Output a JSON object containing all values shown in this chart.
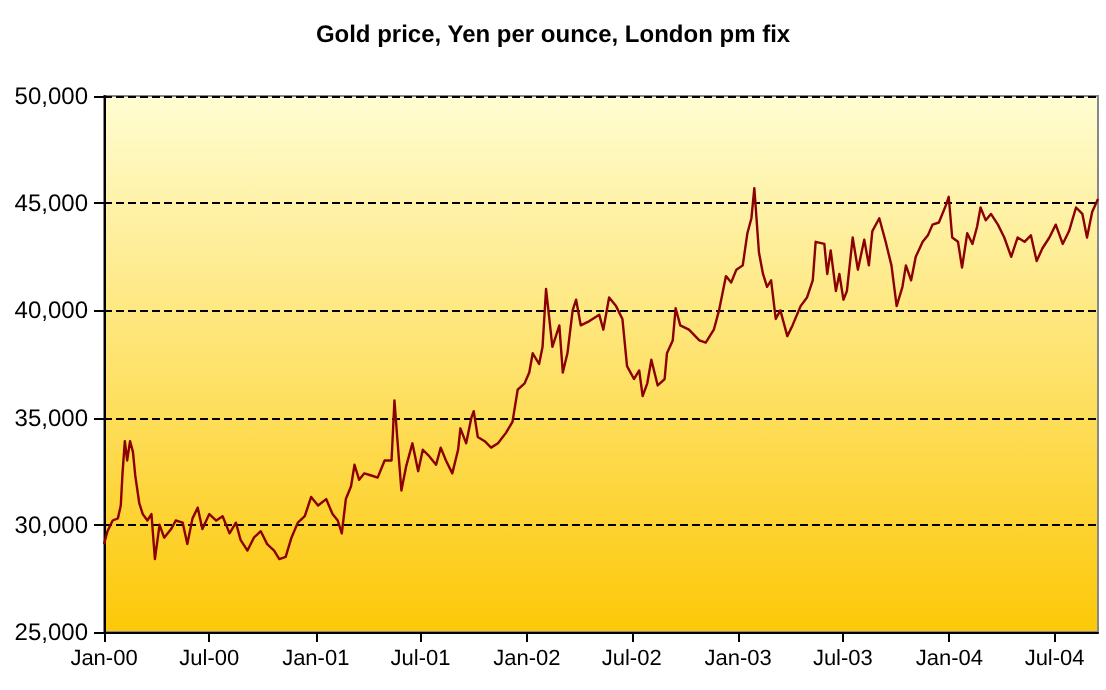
{
  "chart_data": {
    "type": "line",
    "title": "Gold price, Yen per ounce, London pm fix",
    "x": [
      "2000-01-01",
      "2000-01-07",
      "2000-01-16",
      "2000-01-25",
      "2000-01-30",
      "2000-02-02",
      "2000-02-06",
      "2000-02-10",
      "2000-02-15",
      "2000-02-20",
      "2000-02-24",
      "2000-03-02",
      "2000-03-08",
      "2000-03-16",
      "2000-03-23",
      "2000-03-29",
      "2000-04-06",
      "2000-04-14",
      "2000-04-26",
      "2000-05-04",
      "2000-05-16",
      "2000-05-24",
      "2000-06-02",
      "2000-06-11",
      "2000-06-19",
      "2000-07-01",
      "2000-07-13",
      "2000-07-24",
      "2000-08-05",
      "2000-08-16",
      "2000-08-24",
      "2000-09-05",
      "2000-09-16",
      "2000-09-28",
      "2000-10-09",
      "2000-10-21",
      "2000-10-30",
      "2000-11-10",
      "2000-11-20",
      "2000-12-01",
      "2000-12-13",
      "2000-12-24",
      "2001-01-05",
      "2001-01-19",
      "2001-01-30",
      "2001-02-08",
      "2001-02-15",
      "2001-02-22",
      "2001-03-03",
      "2001-03-09",
      "2001-03-17",
      "2001-03-26",
      "2001-04-07",
      "2001-04-18",
      "2001-04-30",
      "2001-05-12",
      "2001-05-17",
      "2001-05-22",
      "2001-05-29",
      "2001-06-06",
      "2001-06-17",
      "2001-06-27",
      "2001-07-05",
      "2001-07-16",
      "2001-07-28",
      "2001-08-05",
      "2001-08-14",
      "2001-08-25",
      "2001-09-04",
      "2001-09-08",
      "2001-09-18",
      "2001-09-27",
      "2001-10-01",
      "2001-10-08",
      "2001-10-20",
      "2001-10-31",
      "2001-11-12",
      "2001-11-26",
      "2001-12-07",
      "2001-12-16",
      "2001-12-28",
      "2002-01-05",
      "2002-01-11",
      "2002-01-22",
      "2002-01-28",
      "2002-02-03",
      "2002-02-14",
      "2002-02-26",
      "2002-03-04",
      "2002-03-12",
      "2002-03-21",
      "2002-03-27",
      "2002-04-04",
      "2002-04-19",
      "2002-05-06",
      "2002-05-13",
      "2002-05-23",
      "2002-06-04",
      "2002-06-15",
      "2002-06-23",
      "2002-07-05",
      "2002-07-14",
      "2002-07-20",
      "2002-07-28",
      "2002-08-04",
      "2002-08-15",
      "2002-08-27",
      "2002-08-31",
      "2002-09-10",
      "2002-09-15",
      "2002-09-23",
      "2002-10-08",
      "2002-10-26",
      "2002-11-06",
      "2002-11-20",
      "2002-11-29",
      "2002-12-11",
      "2002-12-20",
      "2002-12-29",
      "2003-01-09",
      "2003-01-17",
      "2003-01-24",
      "2003-01-29",
      "2003-02-06",
      "2003-02-13",
      "2003-02-20",
      "2003-02-27",
      "2003-03-07",
      "2003-03-15",
      "2003-03-27",
      "2003-04-05",
      "2003-04-19",
      "2003-04-30",
      "2003-05-10",
      "2003-05-15",
      "2003-05-30",
      "2003-06-04",
      "2003-06-10",
      "2003-06-19",
      "2003-06-25",
      "2003-07-02",
      "2003-07-08",
      "2003-07-18",
      "2003-07-27",
      "2003-08-07",
      "2003-08-15",
      "2003-08-21",
      "2003-09-02",
      "2003-09-13",
      "2003-09-23",
      "2003-10-02",
      "2003-10-12",
      "2003-10-18",
      "2003-10-27",
      "2003-11-04",
      "2003-11-16",
      "2003-11-25",
      "2003-12-03",
      "2003-12-14",
      "2003-12-26",
      "2003-12-31",
      "2004-01-06",
      "2004-01-16",
      "2004-01-23",
      "2004-02-01",
      "2004-02-10",
      "2004-02-18",
      "2004-02-24",
      "2004-03-04",
      "2004-03-13",
      "2004-03-25",
      "2004-04-05",
      "2004-04-17",
      "2004-04-28",
      "2004-05-10",
      "2004-05-21",
      "2004-05-31",
      "2004-06-10",
      "2004-06-22",
      "2004-07-03",
      "2004-07-15",
      "2004-07-26",
      "2004-08-07",
      "2004-08-18",
      "2004-08-26",
      "2004-09-04",
      "2004-09-14"
    ],
    "series": [
      {
        "color": "#8b0000",
        "values": [
          29100,
          29700,
          30200,
          30300,
          30900,
          32400,
          33900,
          33000,
          33900,
          33400,
          32300,
          31000,
          30500,
          30200,
          30500,
          28400,
          30000,
          29400,
          29800,
          30200,
          30100,
          29100,
          30300,
          30800,
          29800,
          30500,
          30200,
          30400,
          29600,
          30100,
          29300,
          28800,
          29400,
          29700,
          29100,
          28800,
          28400,
          28500,
          29400,
          30100,
          30400,
          31300,
          30900,
          31200,
          30500,
          30200,
          29600,
          31200,
          31800,
          32800,
          32100,
          32400,
          32300,
          32200,
          33000,
          33000,
          35800,
          34000,
          31600,
          32700,
          33800,
          32500,
          33500,
          33200,
          32800,
          33600,
          33000,
          32400,
          33500,
          34500,
          33800,
          35000,
          35300,
          34100,
          33900,
          33600,
          33800,
          34300,
          34800,
          36300,
          36600,
          37100,
          38000,
          37500,
          38300,
          41000,
          38300,
          39300,
          37100,
          38000,
          40000,
          40500,
          39300,
          39500,
          39800,
          39100,
          40600,
          40200,
          39600,
          37400,
          36800,
          37200,
          36000,
          36600,
          37700,
          36500,
          36800,
          38000,
          38600,
          40100,
          39300,
          39100,
          38600,
          38500,
          39100,
          40000,
          41600,
          41300,
          41900,
          42100,
          43600,
          44300,
          45700,
          42700,
          41700,
          41100,
          41400,
          39600,
          40000,
          38800,
          39300,
          40200,
          40600,
          41400,
          43200,
          43100,
          41700,
          42800,
          40900,
          41700,
          40500,
          40900,
          43400,
          41900,
          43300,
          42100,
          43700,
          44300,
          43200,
          42100,
          40200,
          41100,
          42100,
          41400,
          42500,
          43200,
          43500,
          44000,
          44100,
          44900,
          45300,
          43400,
          43200,
          42000,
          43600,
          43100,
          43900,
          44800,
          44200,
          44500,
          44000,
          43400,
          42500,
          43400,
          43200,
          43500,
          42300,
          42900,
          43400,
          44000,
          43100,
          43700,
          44800,
          44500,
          43400,
          44600,
          45200
        ]
      }
    ],
    "xlim": [
      "2000-01-01",
      "2004-09-14"
    ],
    "xticks": [
      {
        "value": "2000-01-01",
        "label": "Jan-00"
      },
      {
        "value": "2000-07-01",
        "label": "Jul-00"
      },
      {
        "value": "2001-01-01",
        "label": "Jan-01"
      },
      {
        "value": "2001-07-01",
        "label": "Jul-01"
      },
      {
        "value": "2002-01-01",
        "label": "Jan-02"
      },
      {
        "value": "2002-07-01",
        "label": "Jul-02"
      },
      {
        "value": "2003-01-01",
        "label": "Jan-03"
      },
      {
        "value": "2003-07-01",
        "label": "Jul-03"
      },
      {
        "value": "2004-01-01",
        "label": "Jan-04"
      },
      {
        "value": "2004-07-01",
        "label": "Jul-04"
      }
    ],
    "ylim": [
      25000,
      50000
    ],
    "yticks": [
      {
        "value": 25000,
        "label": "25,000"
      },
      {
        "value": 30000,
        "label": "30,000"
      },
      {
        "value": 35000,
        "label": "35,000"
      },
      {
        "value": 40000,
        "label": "40,000"
      },
      {
        "value": 45000,
        "label": "45,000"
      },
      {
        "value": 50000,
        "label": "50,000"
      }
    ],
    "grid": "y",
    "marker": "none",
    "line_style": "solid"
  }
}
